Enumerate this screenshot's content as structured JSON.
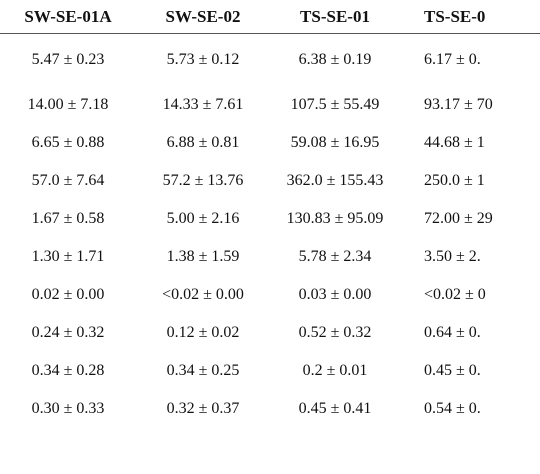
{
  "table": {
    "columns": [
      "SW-SE-01A",
      "SW-SE-02",
      "TS-SE-01",
      "TS-SE-0"
    ],
    "rows": [
      [
        "5.47 ± 0.23",
        "5.73 ± 0.12",
        "6.38 ± 0.19",
        "6.17 ± 0."
      ],
      [
        "14.00 ± 7.18",
        "14.33 ± 7.61",
        "107.5 ± 55.49",
        "93.17 ± 70"
      ],
      [
        "6.65 ± 0.88",
        "6.88 ± 0.81",
        "59.08 ± 16.95",
        "44.68 ± 1"
      ],
      [
        "57.0 ± 7.64",
        "57.2 ± 13.76",
        "362.0 ± 155.43",
        "250.0 ± 1"
      ],
      [
        "1.67 ± 0.58",
        "5.00 ± 2.16",
        "130.83 ± 95.09",
        "72.00 ± 29"
      ],
      [
        "1.30 ± 1.71",
        "1.38 ± 1.59",
        "5.78 ± 2.34",
        "3.50 ± 2."
      ],
      [
        "0.02 ± 0.00",
        "<0.02 ± 0.00",
        "0.03 ± 0.00",
        "<0.02 ± 0"
      ],
      [
        "0.24 ± 0.32",
        "0.12 ± 0.02",
        "0.52 ± 0.32",
        "0.64 ± 0."
      ],
      [
        "0.34 ± 0.28",
        "0.34 ± 0.25",
        "0.2 ± 0.01",
        "0.45 ± 0."
      ],
      [
        "0.30 ± 0.33",
        "0.32 ± 0.37",
        "0.45 ± 0.41",
        "0.54 ± 0."
      ]
    ]
  }
}
